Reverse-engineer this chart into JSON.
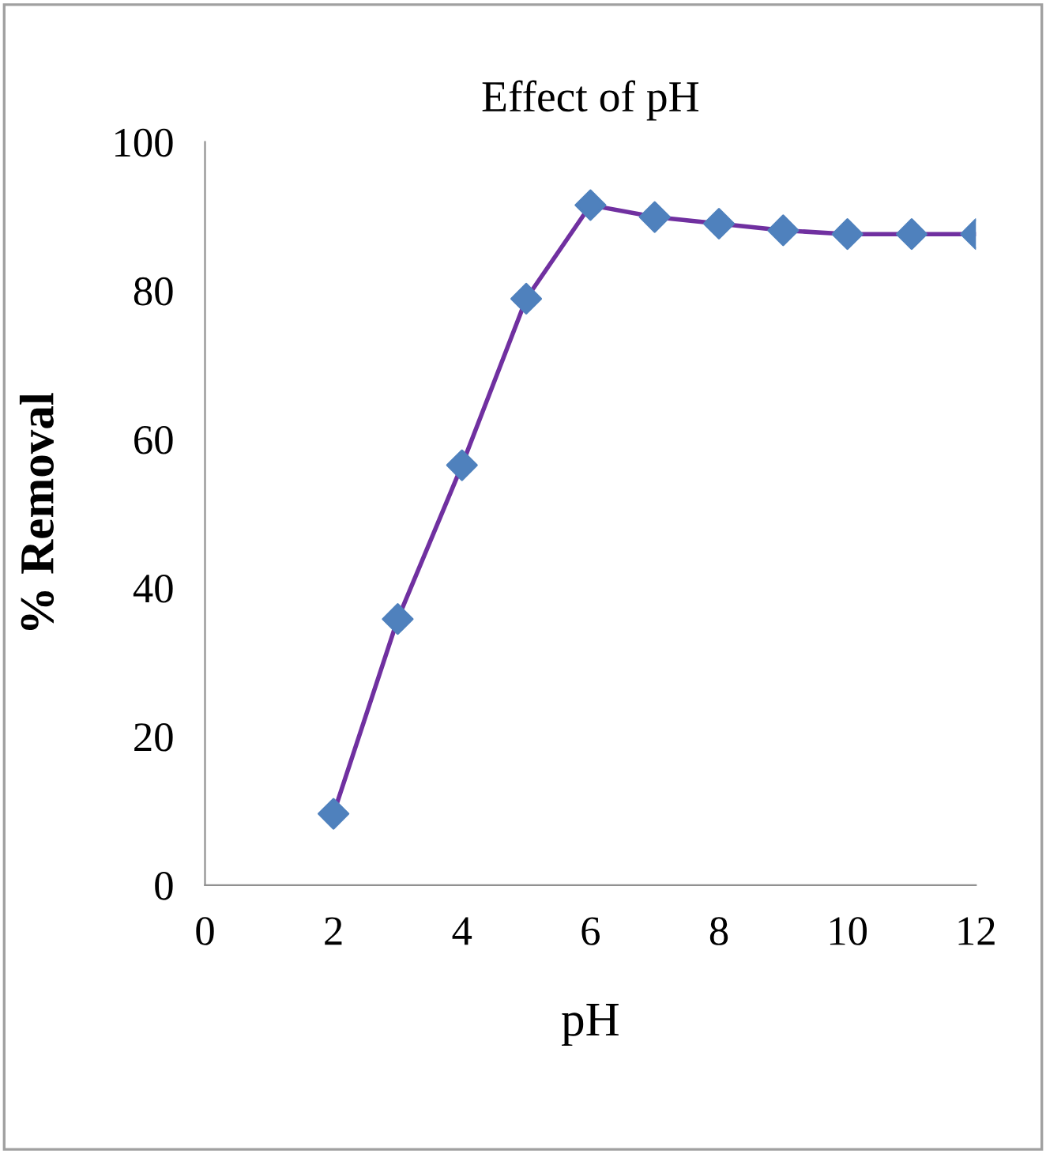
{
  "chart_data": {
    "type": "line",
    "title": "Effect of pH",
    "xlabel": "pH",
    "ylabel": "% Removal",
    "x": [
      2,
      3,
      4,
      5,
      6,
      7,
      8,
      9,
      10,
      11,
      12
    ],
    "series": [
      {
        "color": "#7030a0",
        "colors": [
          "#4f81bd",
          "#4f81bd",
          "#4f81bd",
          "#4f81bd",
          "#4f81bd",
          "#4f81bd",
          "#4f81bd",
          "#4f81bd",
          "#4f81bd",
          "#4f81bd",
          "#4f81bd"
        ],
        "values": [
          9.6,
          35.8,
          56.5,
          78.9,
          91.5,
          89.9,
          89.0,
          88.1,
          87.6,
          87.6,
          87.6
        ]
      }
    ],
    "marker": "diamond",
    "line_style": "solid",
    "grid": false,
    "legend": false,
    "xlim": [
      0,
      12
    ],
    "xticks": [
      0,
      2,
      4,
      6,
      8,
      10,
      12
    ],
    "ylim": [
      0,
      100
    ],
    "yticks": [
      0,
      20,
      40,
      60,
      80,
      100
    ]
  }
}
